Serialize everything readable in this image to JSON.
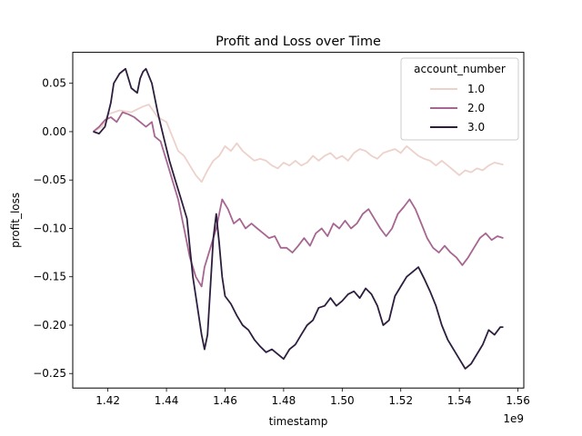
{
  "chart_data": {
    "type": "line",
    "title": "Profit and Loss over Time",
    "xlabel": "timestamp",
    "ylabel": "profit_loss",
    "x_offset_label": "1e9",
    "xlim": [
      1.408,
      1.562
    ],
    "ylim": [
      -0.265,
      0.082
    ],
    "x_ticks": [
      1.42,
      1.44,
      1.46,
      1.48,
      1.5,
      1.52,
      1.54,
      1.56
    ],
    "x_tick_labels": [
      "1.42",
      "1.44",
      "1.46",
      "1.48",
      "1.50",
      "1.52",
      "1.54",
      "1.56"
    ],
    "y_ticks": [
      0.05,
      0.0,
      -0.05,
      -0.1,
      -0.15,
      -0.2,
      -0.25
    ],
    "y_tick_labels": [
      "0.05",
      "0.00",
      "−0.05",
      "−0.10",
      "−0.15",
      "−0.20",
      "−0.25"
    ],
    "grid": false,
    "legend": {
      "title": "account_number",
      "placement": "top-right"
    },
    "series": [
      {
        "name": "1.0",
        "color": "#edd1cb",
        "points": [
          [
            1.415,
            0.0
          ],
          [
            1.418,
            0.005
          ],
          [
            1.42,
            0.018
          ],
          [
            1.424,
            0.022
          ],
          [
            1.428,
            0.02
          ],
          [
            1.432,
            0.026
          ],
          [
            1.434,
            0.028
          ],
          [
            1.437,
            0.015
          ],
          [
            1.44,
            0.01
          ],
          [
            1.442,
            -0.005
          ],
          [
            1.444,
            -0.02
          ],
          [
            1.446,
            -0.025
          ],
          [
            1.448,
            -0.035
          ],
          [
            1.45,
            -0.045
          ],
          [
            1.452,
            -0.052
          ],
          [
            1.454,
            -0.04
          ],
          [
            1.456,
            -0.03
          ],
          [
            1.458,
            -0.025
          ],
          [
            1.46,
            -0.015
          ],
          [
            1.462,
            -0.02
          ],
          [
            1.464,
            -0.012
          ],
          [
            1.466,
            -0.02
          ],
          [
            1.468,
            -0.025
          ],
          [
            1.47,
            -0.03
          ],
          [
            1.472,
            -0.028
          ],
          [
            1.474,
            -0.03
          ],
          [
            1.476,
            -0.035
          ],
          [
            1.478,
            -0.038
          ],
          [
            1.48,
            -0.032
          ],
          [
            1.482,
            -0.035
          ],
          [
            1.484,
            -0.03
          ],
          [
            1.486,
            -0.035
          ],
          [
            1.488,
            -0.032
          ],
          [
            1.49,
            -0.025
          ],
          [
            1.492,
            -0.03
          ],
          [
            1.494,
            -0.025
          ],
          [
            1.496,
            -0.022
          ],
          [
            1.498,
            -0.028
          ],
          [
            1.5,
            -0.025
          ],
          [
            1.502,
            -0.03
          ],
          [
            1.504,
            -0.022
          ],
          [
            1.506,
            -0.018
          ],
          [
            1.508,
            -0.02
          ],
          [
            1.51,
            -0.025
          ],
          [
            1.512,
            -0.028
          ],
          [
            1.514,
            -0.022
          ],
          [
            1.516,
            -0.02
          ],
          [
            1.518,
            -0.018
          ],
          [
            1.52,
            -0.022
          ],
          [
            1.522,
            -0.015
          ],
          [
            1.524,
            -0.02
          ],
          [
            1.526,
            -0.025
          ],
          [
            1.528,
            -0.028
          ],
          [
            1.53,
            -0.03
          ],
          [
            1.532,
            -0.035
          ],
          [
            1.534,
            -0.03
          ],
          [
            1.536,
            -0.035
          ],
          [
            1.538,
            -0.04
          ],
          [
            1.54,
            -0.045
          ],
          [
            1.542,
            -0.04
          ],
          [
            1.544,
            -0.042
          ],
          [
            1.546,
            -0.038
          ],
          [
            1.548,
            -0.04
          ],
          [
            1.55,
            -0.035
          ],
          [
            1.552,
            -0.032
          ],
          [
            1.555,
            -0.034
          ]
        ]
      },
      {
        "name": "2.0",
        "color": "#a76691",
        "points": [
          [
            1.415,
            0.0
          ],
          [
            1.417,
            0.005
          ],
          [
            1.419,
            0.012
          ],
          [
            1.421,
            0.015
          ],
          [
            1.423,
            0.01
          ],
          [
            1.425,
            0.02
          ],
          [
            1.427,
            0.018
          ],
          [
            1.429,
            0.015
          ],
          [
            1.431,
            0.01
          ],
          [
            1.433,
            0.005
          ],
          [
            1.435,
            0.01
          ],
          [
            1.436,
            -0.005
          ],
          [
            1.438,
            -0.01
          ],
          [
            1.44,
            -0.03
          ],
          [
            1.442,
            -0.05
          ],
          [
            1.444,
            -0.07
          ],
          [
            1.446,
            -0.1
          ],
          [
            1.448,
            -0.13
          ],
          [
            1.45,
            -0.15
          ],
          [
            1.452,
            -0.16
          ],
          [
            1.453,
            -0.14
          ],
          [
            1.455,
            -0.12
          ],
          [
            1.457,
            -0.1
          ],
          [
            1.459,
            -0.07
          ],
          [
            1.461,
            -0.08
          ],
          [
            1.463,
            -0.095
          ],
          [
            1.465,
            -0.09
          ],
          [
            1.467,
            -0.1
          ],
          [
            1.469,
            -0.095
          ],
          [
            1.471,
            -0.1
          ],
          [
            1.473,
            -0.105
          ],
          [
            1.475,
            -0.11
          ],
          [
            1.477,
            -0.108
          ],
          [
            1.479,
            -0.12
          ],
          [
            1.481,
            -0.12
          ],
          [
            1.483,
            -0.125
          ],
          [
            1.485,
            -0.118
          ],
          [
            1.487,
            -0.11
          ],
          [
            1.489,
            -0.118
          ],
          [
            1.491,
            -0.105
          ],
          [
            1.493,
            -0.1
          ],
          [
            1.495,
            -0.108
          ],
          [
            1.497,
            -0.095
          ],
          [
            1.499,
            -0.1
          ],
          [
            1.501,
            -0.092
          ],
          [
            1.503,
            -0.1
          ],
          [
            1.505,
            -0.095
          ],
          [
            1.507,
            -0.085
          ],
          [
            1.509,
            -0.08
          ],
          [
            1.511,
            -0.09
          ],
          [
            1.513,
            -0.1
          ],
          [
            1.515,
            -0.108
          ],
          [
            1.517,
            -0.1
          ],
          [
            1.519,
            -0.085
          ],
          [
            1.521,
            -0.078
          ],
          [
            1.523,
            -0.07
          ],
          [
            1.525,
            -0.08
          ],
          [
            1.527,
            -0.095
          ],
          [
            1.529,
            -0.11
          ],
          [
            1.531,
            -0.12
          ],
          [
            1.533,
            -0.125
          ],
          [
            1.535,
            -0.118
          ],
          [
            1.537,
            -0.125
          ],
          [
            1.539,
            -0.13
          ],
          [
            1.541,
            -0.138
          ],
          [
            1.543,
            -0.13
          ],
          [
            1.545,
            -0.12
          ],
          [
            1.547,
            -0.11
          ],
          [
            1.549,
            -0.105
          ],
          [
            1.551,
            -0.112
          ],
          [
            1.553,
            -0.108
          ],
          [
            1.555,
            -0.11
          ]
        ]
      },
      {
        "name": "3.0",
        "color": "#2d1e3e",
        "points": [
          [
            1.415,
            0.0
          ],
          [
            1.417,
            -0.002
          ],
          [
            1.419,
            0.005
          ],
          [
            1.421,
            0.03
          ],
          [
            1.422,
            0.05
          ],
          [
            1.424,
            0.06
          ],
          [
            1.426,
            0.065
          ],
          [
            1.427,
            0.055
          ],
          [
            1.428,
            0.045
          ],
          [
            1.43,
            0.04
          ],
          [
            1.431,
            0.055
          ],
          [
            1.432,
            0.062
          ],
          [
            1.433,
            0.065
          ],
          [
            1.435,
            0.05
          ],
          [
            1.437,
            0.02
          ],
          [
            1.439,
            -0.005
          ],
          [
            1.441,
            -0.03
          ],
          [
            1.443,
            -0.05
          ],
          [
            1.445,
            -0.07
          ],
          [
            1.447,
            -0.09
          ],
          [
            1.448,
            -0.12
          ],
          [
            1.449,
            -0.15
          ],
          [
            1.45,
            -0.17
          ],
          [
            1.451,
            -0.19
          ],
          [
            1.452,
            -0.21
          ],
          [
            1.453,
            -0.225
          ],
          [
            1.454,
            -0.21
          ],
          [
            1.455,
            -0.16
          ],
          [
            1.456,
            -0.11
          ],
          [
            1.457,
            -0.085
          ],
          [
            1.458,
            -0.115
          ],
          [
            1.459,
            -0.15
          ],
          [
            1.46,
            -0.17
          ],
          [
            1.462,
            -0.178
          ],
          [
            1.464,
            -0.19
          ],
          [
            1.466,
            -0.2
          ],
          [
            1.468,
            -0.205
          ],
          [
            1.47,
            -0.215
          ],
          [
            1.472,
            -0.222
          ],
          [
            1.474,
            -0.228
          ],
          [
            1.476,
            -0.225
          ],
          [
            1.478,
            -0.23
          ],
          [
            1.48,
            -0.235
          ],
          [
            1.482,
            -0.225
          ],
          [
            1.484,
            -0.22
          ],
          [
            1.486,
            -0.21
          ],
          [
            1.488,
            -0.2
          ],
          [
            1.49,
            -0.195
          ],
          [
            1.492,
            -0.182
          ],
          [
            1.494,
            -0.18
          ],
          [
            1.496,
            -0.172
          ],
          [
            1.498,
            -0.18
          ],
          [
            1.5,
            -0.175
          ],
          [
            1.502,
            -0.168
          ],
          [
            1.504,
            -0.165
          ],
          [
            1.506,
            -0.172
          ],
          [
            1.508,
            -0.162
          ],
          [
            1.51,
            -0.168
          ],
          [
            1.512,
            -0.18
          ],
          [
            1.514,
            -0.2
          ],
          [
            1.516,
            -0.195
          ],
          [
            1.518,
            -0.17
          ],
          [
            1.52,
            -0.16
          ],
          [
            1.522,
            -0.15
          ],
          [
            1.524,
            -0.145
          ],
          [
            1.526,
            -0.14
          ],
          [
            1.528,
            -0.152
          ],
          [
            1.53,
            -0.165
          ],
          [
            1.532,
            -0.18
          ],
          [
            1.534,
            -0.2
          ],
          [
            1.536,
            -0.215
          ],
          [
            1.538,
            -0.225
          ],
          [
            1.54,
            -0.235
          ],
          [
            1.542,
            -0.245
          ],
          [
            1.544,
            -0.24
          ],
          [
            1.546,
            -0.23
          ],
          [
            1.548,
            -0.22
          ],
          [
            1.55,
            -0.205
          ],
          [
            1.552,
            -0.21
          ],
          [
            1.554,
            -0.202
          ],
          [
            1.555,
            -0.202
          ]
        ]
      }
    ]
  }
}
